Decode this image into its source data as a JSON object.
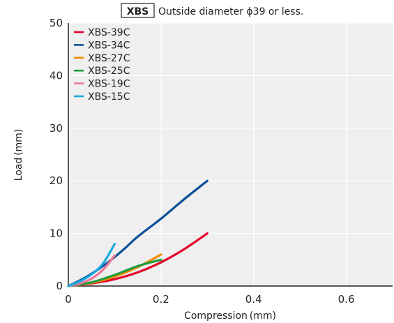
{
  "chart_data": {
    "type": "line",
    "title_badge": "XBS",
    "title": "Outside diameter ϕ39 or less.",
    "xlabel": "Compression (mm)",
    "ylabel": "Load (mm)",
    "xlim": [
      0,
      0.7
    ],
    "ylim": [
      0,
      50
    ],
    "xticks": [
      0,
      0.2,
      0.4,
      0.6
    ],
    "xtick_labels": [
      "0",
      "0.2",
      "0.4",
      "0.6"
    ],
    "yticks": [
      0,
      10,
      20,
      30,
      40,
      50
    ],
    "ytick_labels": [
      "0",
      "10",
      "20",
      "30",
      "40",
      "50"
    ],
    "grid": true,
    "legend_position": "top-left",
    "series": [
      {
        "name": "XBS-39C",
        "color": "#e4002b",
        "x": [
          0,
          0.05,
          0.1,
          0.15,
          0.2,
          0.25,
          0.3
        ],
        "y": [
          0,
          0.5,
          1.3,
          2.6,
          4.5,
          7.0,
          10.0
        ]
      },
      {
        "name": "XBS-34C",
        "color": "#0d4f9a",
        "x": [
          0,
          0.03,
          0.06,
          0.09,
          0.12,
          0.15,
          0.2,
          0.25,
          0.3
        ],
        "y": [
          0,
          1.3,
          2.9,
          4.8,
          7.0,
          9.4,
          12.8,
          16.5,
          20.0
        ]
      },
      {
        "name": "XBS-27C",
        "color": "#f08c00",
        "x": [
          0,
          0.05,
          0.1,
          0.15,
          0.2
        ],
        "y": [
          0,
          0.6,
          1.8,
          3.6,
          6.0
        ]
      },
      {
        "name": "XBS-25C",
        "color": "#1e9e3e",
        "x": [
          0,
          0.05,
          0.1,
          0.15,
          0.2
        ],
        "y": [
          0,
          0.7,
          2.1,
          3.8,
          5.0
        ]
      },
      {
        "name": "XBS-19C",
        "color": "#e8789c",
        "x": [
          0,
          0.025,
          0.05,
          0.075,
          0.1
        ],
        "y": [
          0,
          0.5,
          1.4,
          3.1,
          5.8
        ]
      },
      {
        "name": "XBS-15C",
        "color": "#1aa9dc",
        "x": [
          0,
          0.025,
          0.05,
          0.075,
          0.1
        ],
        "y": [
          0,
          0.9,
          2.2,
          4.3,
          8.0
        ]
      }
    ]
  }
}
